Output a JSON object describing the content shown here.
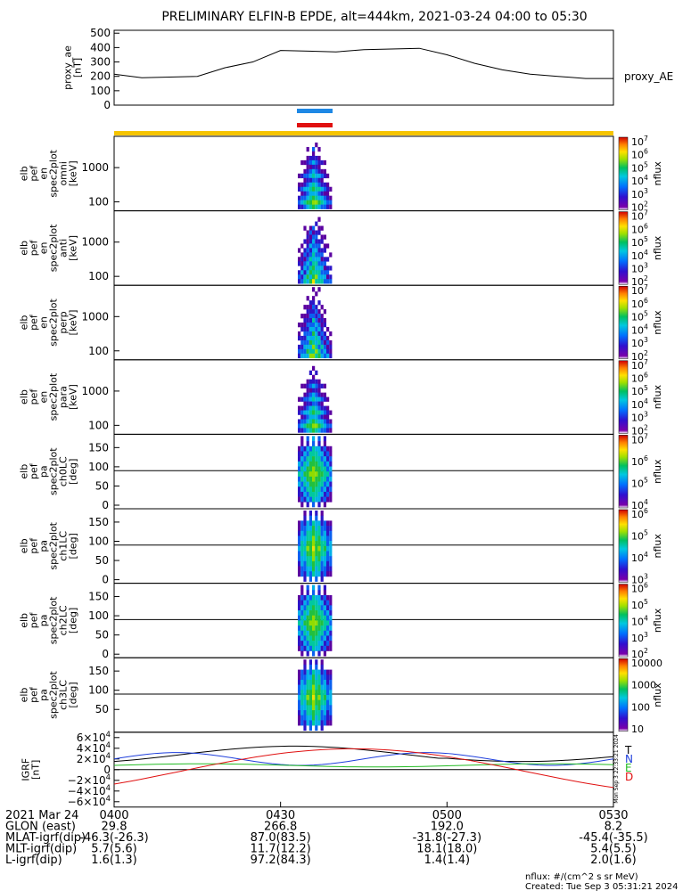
{
  "title": "PRELIMINARY ELFIN-B EPDE, alt=444km, 2021-03-24 04:00 to 05:30",
  "colors": {
    "blue_bar": "#1e88e5",
    "red_bar": "#e01010",
    "yellow_bar": "#f5c400",
    "ae_line": "#000000"
  },
  "ae_panel": {
    "ylabel": [
      "proxy_ae",
      "[nT]"
    ],
    "yticks": [
      "500",
      "400",
      "300",
      "200",
      "100",
      "0"
    ],
    "ylim": [
      0,
      520
    ],
    "right_label": "proxy_AE",
    "series_t": [
      0,
      5,
      10,
      15,
      20,
      25,
      30,
      35,
      40,
      45,
      50,
      55,
      60,
      65,
      70,
      75,
      80,
      85,
      90
    ],
    "series_v": [
      215,
      190,
      195,
      200,
      260,
      300,
      380,
      375,
      370,
      385,
      390,
      395,
      350,
      290,
      245,
      215,
      200,
      185,
      185
    ]
  },
  "spec_panels": [
    {
      "ylabel": [
        "elb",
        "pef",
        "en",
        "spec2plot",
        "omni",
        "[keV]"
      ],
      "yticks": [
        "1000",
        "100"
      ],
      "cb_label": "nflux",
      "cb_ticks": [
        "10^7",
        "10^6",
        "10^5",
        "10^4",
        "10^3",
        "10^2"
      ],
      "kind": "energy"
    },
    {
      "ylabel": [
        "elb",
        "pef",
        "en",
        "spec2plot",
        "anti",
        "[keV]"
      ],
      "yticks": [
        "1000",
        "100"
      ],
      "cb_label": "nflux",
      "cb_ticks": [
        "10^7",
        "10^6",
        "10^5",
        "10^4",
        "10^3",
        "10^2"
      ],
      "kind": "energy"
    },
    {
      "ylabel": [
        "elb",
        "pef",
        "en",
        "spec2plot",
        "perp",
        "[keV]"
      ],
      "yticks": [
        "1000",
        "100"
      ],
      "cb_label": "nflux",
      "cb_ticks": [
        "10^7",
        "10^6",
        "10^5",
        "10^4",
        "10^3",
        "10^2"
      ],
      "kind": "energy"
    },
    {
      "ylabel": [
        "elb",
        "pef",
        "en",
        "spec2plot",
        "para",
        "[keV]"
      ],
      "yticks": [
        "1000",
        "100"
      ],
      "cb_label": "nflux",
      "cb_ticks": [
        "10^7",
        "10^6",
        "10^5",
        "10^4",
        "10^3",
        "10^2"
      ],
      "kind": "energy"
    },
    {
      "ylabel": [
        "elb",
        "pef",
        "pa",
        "spec2plot",
        "ch0LC",
        "[deg]"
      ],
      "yticks": [
        "150",
        "100",
        "50",
        "0"
      ],
      "cb_label": "nflux",
      "cb_ticks": [
        "10^7",
        "10^6",
        "10^5",
        "10^4"
      ],
      "kind": "pa"
    },
    {
      "ylabel": [
        "elb",
        "pef",
        "pa",
        "spec2plot",
        "ch1LC",
        "[deg]"
      ],
      "yticks": [
        "150",
        "100",
        "50",
        "0"
      ],
      "cb_label": "nflux",
      "cb_ticks": [
        "10^6",
        "10^5",
        "10^4",
        "10^3"
      ],
      "kind": "pa"
    },
    {
      "ylabel": [
        "elb",
        "pef",
        "pa",
        "spec2plot",
        "ch2LC",
        "[deg]"
      ],
      "yticks": [
        "150",
        "100",
        "50",
        "0"
      ],
      "cb_label": "nflux",
      "cb_ticks": [
        "10^6",
        "10^5",
        "10^4",
        "10^3",
        "10^2"
      ],
      "kind": "pa"
    },
    {
      "ylabel": [
        "elb",
        "pef",
        "pa",
        "spec2plot",
        "ch3LC",
        "[deg]"
      ],
      "yticks": [
        "150",
        "100",
        "50"
      ],
      "cb_label": "nflux",
      "cb_ticks": [
        "10000",
        "1000",
        "100",
        "10"
      ],
      "kind": "pa"
    }
  ],
  "igrf_panel": {
    "ylabel": [
      "IGRF",
      "[nT]"
    ],
    "yticks": [
      "6×10^4",
      "4×10^4",
      "2×10^4",
      "0",
      "−2×10^4",
      "−4×10^4",
      "−6×10^4"
    ],
    "legend": [
      {
        "label": "T",
        "color": "#000000"
      },
      {
        "label": "N",
        "color": "#1f3fdc"
      },
      {
        "label": "E",
        "color": "#22bb22"
      },
      {
        "label": "D",
        "color": "#e01010"
      }
    ],
    "vertical_note": "Mon Sep 3 22:33:21 2024"
  },
  "xaxis": {
    "ticks": [
      "0400",
      "0430",
      "0500",
      "0530"
    ],
    "rows": [
      {
        "label": "2021 Mar 24",
        "vals": [
          "",
          "",
          "",
          ""
        ]
      },
      {
        "label": "GLON (east)",
        "vals": [
          "29.8",
          "266.8",
          "192.0",
          "8.2"
        ]
      },
      {
        "label": "MLAT-igrf(dip)",
        "vals": [
          "-46.3(-26.3)",
          "87.0(83.5)",
          "-31.8(-27.3)",
          "-45.4(-35.5)"
        ]
      },
      {
        "label": "MLT-igrf(dip)",
        "vals": [
          "5.7(5.6)",
          "11.7(12.2)",
          "18.1(18.0)",
          "5.4(5.5)"
        ]
      },
      {
        "label": "L-igrf(dip)",
        "vals": [
          "1.6(1.3)",
          "97.2(84.3)",
          "1.4(1.4)",
          "2.0(1.6)"
        ]
      }
    ]
  },
  "footer": {
    "units": "nflux: #/(cm^2 s sr MeV)",
    "created": "Created: Tue Sep  3 05:31:21 2024"
  }
}
